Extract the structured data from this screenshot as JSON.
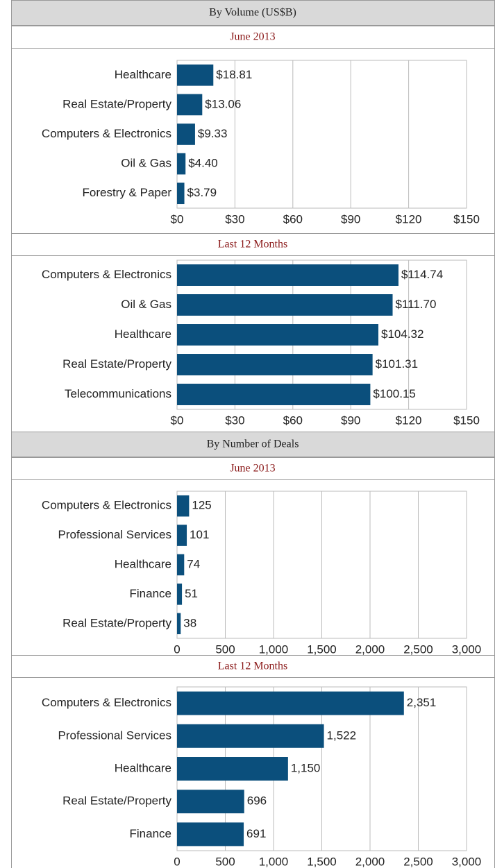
{
  "sections": [
    {
      "title": "By Volume (US$B)"
    },
    {
      "title": "By Number of Deals"
    }
  ],
  "chart_data": [
    {
      "type": "bar",
      "orientation": "horizontal",
      "title": "June 2013",
      "color": "#0b4f7c",
      "grid": true,
      "categories": [
        "Healthcare",
        "Real Estate/Property",
        "Computers & Electronics",
        "Oil & Gas",
        "Forestry & Paper"
      ],
      "values": [
        18.81,
        13.06,
        9.33,
        4.4,
        3.79
      ],
      "value_labels": [
        "$18.81",
        "$13.06",
        "$9.33",
        "$4.40",
        "$3.79"
      ],
      "xlim": [
        0,
        150
      ],
      "xticks": [
        {
          "value": 0,
          "label": "$0"
        },
        {
          "value": 30,
          "label": "$30"
        },
        {
          "value": 60,
          "label": "$60"
        },
        {
          "value": 90,
          "label": "$90"
        },
        {
          "value": 120,
          "label": "$120"
        },
        {
          "value": 150,
          "label": "$150"
        }
      ]
    },
    {
      "type": "bar",
      "orientation": "horizontal",
      "title": "Last 12 Months",
      "color": "#0b4f7c",
      "grid": true,
      "categories": [
        "Computers & Electronics",
        "Oil & Gas",
        "Healthcare",
        "Real Estate/Property",
        "Telecommunications"
      ],
      "values": [
        114.74,
        111.7,
        104.32,
        101.31,
        100.15
      ],
      "value_labels": [
        "$114.74",
        "$111.70",
        "$104.32",
        "$101.31",
        "$100.15"
      ],
      "xlim": [
        0,
        150
      ],
      "xticks": [
        {
          "value": 0,
          "label": "$0"
        },
        {
          "value": 30,
          "label": "$30"
        },
        {
          "value": 60,
          "label": "$60"
        },
        {
          "value": 90,
          "label": "$90"
        },
        {
          "value": 120,
          "label": "$120"
        },
        {
          "value": 150,
          "label": "$150"
        }
      ]
    },
    {
      "type": "bar",
      "orientation": "horizontal",
      "title": "June 2013",
      "color": "#0b4f7c",
      "grid": true,
      "categories": [
        "Computers & Electronics",
        "Professional Services",
        "Healthcare",
        "Finance",
        "Real Estate/Property"
      ],
      "values": [
        125,
        101,
        74,
        51,
        38
      ],
      "xlim": [
        0,
        3000
      ],
      "xticks": [
        0,
        500,
        {
          "value": 1000,
          "label": "1,000"
        },
        {
          "value": 1500,
          "label": "1,500"
        },
        {
          "value": 2000,
          "label": "2,000"
        },
        {
          "value": 2500,
          "label": "2,500"
        },
        {
          "value": 3000,
          "label": "3,000"
        }
      ]
    },
    {
      "type": "bar",
      "orientation": "horizontal",
      "title": "Last 12 Months",
      "color": "#0b4f7c",
      "grid": true,
      "categories": [
        "Computers & Electronics",
        "Professional Services",
        "Healthcare",
        "Real Estate/Property",
        "Finance"
      ],
      "values": [
        2351,
        1522,
        1150,
        696,
        691
      ],
      "value_labels": [
        "2,351",
        "1,522",
        "1,150",
        "696",
        "691"
      ],
      "xlim": [
        0,
        3000
      ],
      "xticks": [
        0,
        500,
        {
          "value": 1000,
          "label": "1,000"
        },
        {
          "value": 1500,
          "label": "1,500"
        },
        {
          "value": 2000,
          "label": "2,000"
        },
        {
          "value": 2500,
          "label": "2,500"
        },
        {
          "value": 3000,
          "label": "3,000"
        }
      ]
    }
  ]
}
